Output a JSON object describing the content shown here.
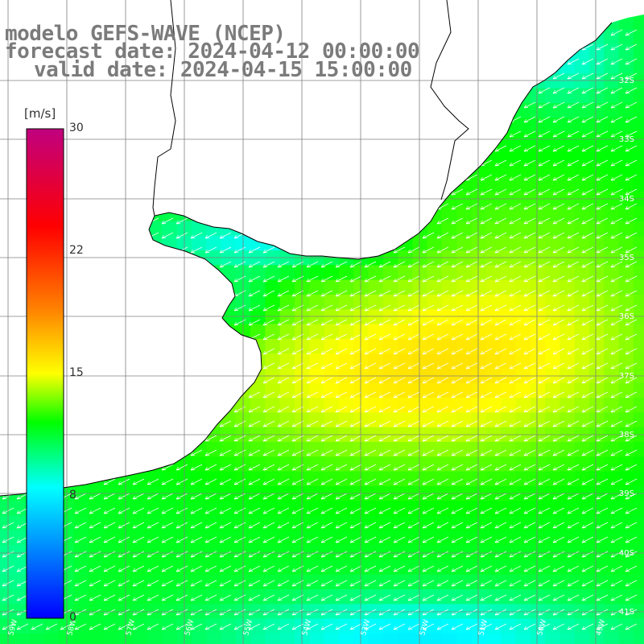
{
  "title": {
    "line1": "modelo GEFS-WAVE (NCEP)",
    "line2": "forecast date: 2024-04-12 00:00:00",
    "line3": "valid date: 2024-04-15 15:00:00"
  },
  "colorbar": {
    "unit": "[m/s]",
    "ticks": [
      {
        "label": "30",
        "value": 30
      },
      {
        "label": "22",
        "value": 22
      },
      {
        "label": "15",
        "value": 15
      },
      {
        "label": "8",
        "value": 8
      },
      {
        "label": "0",
        "value": 0
      }
    ],
    "stops": [
      {
        "value": 0,
        "color": "#0000ff"
      },
      {
        "value": 8,
        "color": "#00ffff"
      },
      {
        "value": 12,
        "color": "#00ff00"
      },
      {
        "value": 15,
        "color": "#ffff00"
      },
      {
        "value": 19,
        "color": "#ff8000"
      },
      {
        "value": 22,
        "color": "#ff3300"
      },
      {
        "value": 24,
        "color": "#ff0000"
      },
      {
        "value": 30,
        "color": "#c00080"
      }
    ]
  },
  "lat_labels": [
    "32S",
    "33S",
    "34S",
    "35S",
    "36S",
    "37S",
    "38S",
    "39S",
    "40S",
    "41S"
  ],
  "lon_labels": [
    "59W",
    "58W",
    "57W",
    "56W",
    "55W",
    "54W",
    "53W",
    "52W",
    "51W",
    "50W",
    "49W"
  ],
  "land_color": "#ffffff",
  "grid_color": "#808080",
  "coast_color": "#000000",
  "arrow_color": "#ffffff",
  "wind_direction": "southwest"
}
